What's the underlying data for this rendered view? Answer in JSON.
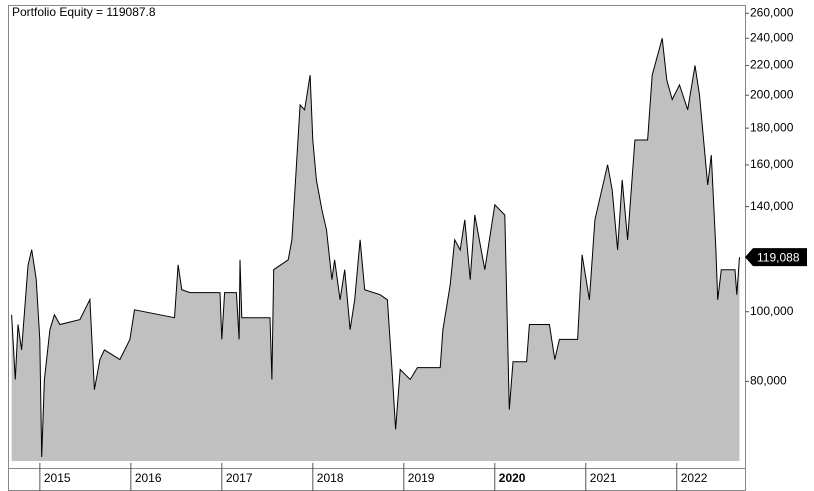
{
  "chart_data": {
    "type": "area",
    "title": "Portfolio Equity = 119087.8",
    "last_value_label": "119,088",
    "x": [
      2014.69,
      2014.73,
      2014.76,
      2014.8,
      2014.87,
      2014.91,
      2014.96,
      2015.0,
      2015.02,
      2015.05,
      2015.11,
      2015.16,
      2015.22,
      2015.44,
      2015.55,
      2015.6,
      2015.66,
      2015.71,
      2015.88,
      2015.99,
      2016.04,
      2016.48,
      2016.52,
      2016.56,
      2016.65,
      2016.98,
      2017.0,
      2017.03,
      2017.16,
      2017.19,
      2017.2,
      2017.22,
      2017.53,
      2017.55,
      2017.57,
      2017.73,
      2017.77,
      2017.86,
      2017.91,
      2017.97,
      2018.0,
      2018.04,
      2018.1,
      2018.15,
      2018.21,
      2018.24,
      2018.3,
      2018.35,
      2018.41,
      2018.46,
      2018.52,
      2018.57,
      2018.74,
      2018.82,
      2018.87,
      2018.91,
      2018.96,
      2019.07,
      2019.15,
      2019.4,
      2019.43,
      2019.51,
      2019.56,
      2019.62,
      2019.67,
      2019.73,
      2019.78,
      2019.89,
      2020.0,
      2020.11,
      2020.16,
      2020.2,
      2020.35,
      2020.38,
      2020.6,
      2020.66,
      2020.71,
      2020.91,
      2020.96,
      2021.04,
      2021.1,
      2021.24,
      2021.29,
      2021.35,
      2021.4,
      2021.46,
      2021.54,
      2021.68,
      2021.73,
      2021.84,
      2021.89,
      2021.95,
      2022.03,
      2022.12,
      2022.2,
      2022.25,
      2022.34,
      2022.38,
      2022.43,
      2022.45,
      2022.49,
      2022.64,
      2022.66,
      2022.69
    ],
    "series": [
      {
        "name": "Portfolio Equity",
        "color": "#c0c0c0",
        "line_color": "#000000",
        "values": [
          99000,
          80500,
          96000,
          88500,
          116000,
          122000,
          111000,
          91500,
          62800,
          80500,
          94400,
          99000,
          96000,
          97500,
          104000,
          77900,
          85800,
          88500,
          85800,
          91500,
          100600,
          98100,
          116200,
          107300,
          106300,
          106300,
          91500,
          106300,
          106300,
          91500,
          118100,
          98100,
          98100,
          80500,
          114400,
          118100,
          125900,
          193900,
          190900,
          213300,
          173300,
          152500,
          138600,
          130000,
          110800,
          118100,
          103900,
          114400,
          94400,
          103900,
          125900,
          107300,
          105600,
          103900,
          83100,
          68600,
          83100,
          80500,
          83600,
          83600,
          94400,
          109000,
          125900,
          121900,
          134200,
          110800,
          136300,
          114400,
          140800,
          136300,
          73100,
          85200,
          85200,
          96000,
          96000,
          85800,
          91500,
          91500,
          120000,
          103900,
          134200,
          160100,
          147700,
          121900,
          152500,
          125900,
          173300,
          173300,
          213300,
          240100,
          210000,
          197300,
          206700,
          190900,
          220000,
          200100,
          150100,
          165100,
          121900,
          103900,
          114400,
          114400,
          105600,
          119087.8
        ]
      }
    ],
    "xlim": [
      2014.65,
      2022.75
    ],
    "xticks": [
      2015,
      2016,
      2017,
      2018,
      2019,
      2020,
      2021,
      2022
    ],
    "xticks_bold": [
      false,
      false,
      false,
      false,
      false,
      true,
      false,
      false
    ],
    "ylim": [
      62000,
      267000
    ],
    "log_scale": true,
    "yticks": [
      {
        "value": 80000,
        "label": "80,000"
      },
      {
        "value": 100000,
        "label": "100,000"
      },
      {
        "value": 140000,
        "label": "140,000"
      },
      {
        "value": 160000,
        "label": "160,000"
      },
      {
        "value": 180000,
        "label": "180,000"
      },
      {
        "value": 200000,
        "label": "200,000"
      },
      {
        "value": 220000,
        "label": "220,000"
      },
      {
        "value": 240000,
        "label": "240,000"
      },
      {
        "value": 260000,
        "label": "260,000"
      }
    ],
    "grid": false
  }
}
